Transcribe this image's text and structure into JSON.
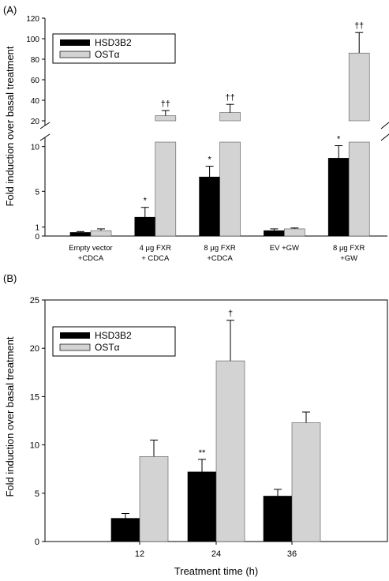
{
  "chart_data": [
    {
      "panel_label": "(A)",
      "type": "bar",
      "ylabel": "Fold induction over basal treatment",
      "categories": [
        "Empty  vector\n+CDCA",
        "4 μg FXR\n+ CDCA",
        "8 μg FXR\n+CDCA",
        "EV +GW",
        "8 μg FXR\n+GW"
      ],
      "series": [
        {
          "name": "HSD3B2",
          "color": "#000000",
          "values": [
            0.4,
            2.1,
            6.6,
            0.6,
            8.7
          ],
          "errors": [
            0.1,
            1.1,
            1.2,
            0.2,
            1.4
          ],
          "annotations": [
            "",
            "*",
            "*",
            "",
            "*"
          ]
        },
        {
          "name": "OSTα",
          "color": "#d3d3d3",
          "values": [
            0.6,
            25,
            28,
            0.8,
            86
          ],
          "errors": [
            0.2,
            5,
            8,
            0.1,
            20
          ],
          "annotations": [
            "",
            "††",
            "††",
            "",
            "††"
          ]
        }
      ],
      "broken_axis": {
        "lower_range": [
          0,
          10.5
        ],
        "upper_range": [
          20,
          120
        ]
      },
      "yticks_lower": [
        0,
        1,
        5,
        10
      ],
      "yticks_upper": [
        20,
        40,
        60,
        80,
        100,
        120
      ],
      "legend": "top-left"
    },
    {
      "panel_label": "(B)",
      "type": "bar",
      "ylabel": "Fold induction over basal treatment",
      "xlabel": "Treatment time (h)",
      "categories": [
        "12",
        "24",
        "36"
      ],
      "series": [
        {
          "name": "HSD3B2",
          "color": "#000000",
          "values": [
            2.4,
            7.2,
            4.7
          ],
          "errors": [
            0.5,
            1.3,
            0.7
          ],
          "annotations": [
            "",
            "**",
            ""
          ]
        },
        {
          "name": "OSTα",
          "color": "#d3d3d3",
          "values": [
            8.8,
            18.7,
            12.3
          ],
          "errors": [
            1.7,
            4.2,
            1.1
          ],
          "annotations": [
            "",
            "†",
            ""
          ]
        }
      ],
      "ylim": [
        0,
        25
      ],
      "yticks": [
        0,
        5,
        10,
        15,
        20,
        25
      ],
      "legend": "top-left"
    }
  ]
}
